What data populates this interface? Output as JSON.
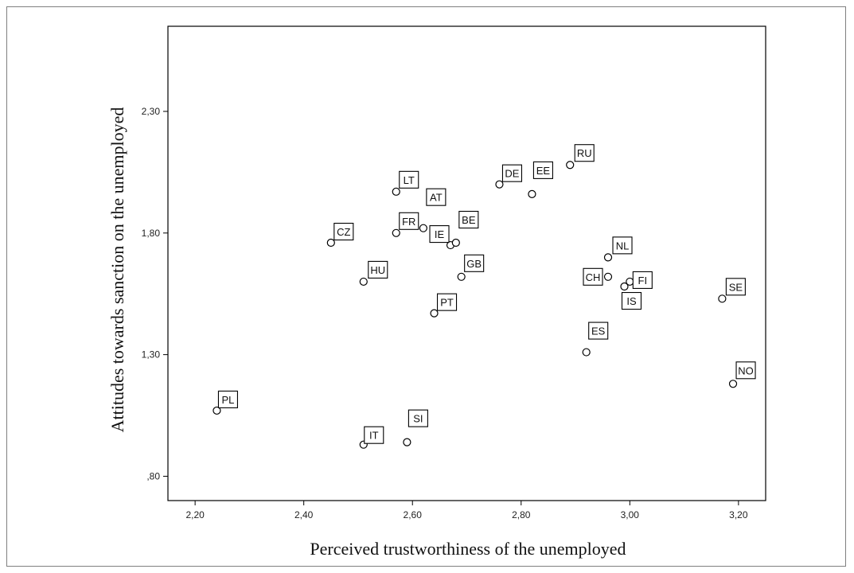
{
  "chart_data": {
    "type": "scatter",
    "title": "",
    "xlabel": "Perceived trustworthiness of the unemployed",
    "ylabel": "Attitudes towards sanction on the unemployed",
    "xlim": [
      2.15,
      3.25
    ],
    "ylim": [
      0.7,
      2.65
    ],
    "xticks": [
      2.2,
      2.4,
      2.6,
      2.8,
      3.0,
      3.2
    ],
    "xtick_labels": [
      "2,20",
      "2,40",
      "2,60",
      "2,80",
      "3,00",
      "3,20"
    ],
    "yticks": [
      0.8,
      1.3,
      1.8,
      2.3
    ],
    "ytick_labels": [
      ",80",
      "1,30",
      "1,80",
      "2,30"
    ],
    "grid": false,
    "legend": "none",
    "marker": "open-circle",
    "points": [
      {
        "label": "PL",
        "x": 2.24,
        "y": 1.07,
        "dx": 14,
        "dy": -14
      },
      {
        "label": "IT",
        "x": 2.51,
        "y": 0.93,
        "dx": 13,
        "dy": -12
      },
      {
        "label": "SI",
        "x": 2.59,
        "y": 0.94,
        "dx": 14,
        "dy": -30
      },
      {
        "label": "CZ",
        "x": 2.45,
        "y": 1.76,
        "dx": 16,
        "dy": -14
      },
      {
        "label": "HU",
        "x": 2.51,
        "y": 1.6,
        "dx": 18,
        "dy": -15
      },
      {
        "label": "LT",
        "x": 2.57,
        "y": 1.97,
        "dx": 16,
        "dy": -15
      },
      {
        "label": "FR",
        "x": 2.57,
        "y": 1.8,
        "dx": 16,
        "dy": -15
      },
      {
        "label": "AT",
        "x": 2.62,
        "y": 1.82,
        "dx": 16,
        "dy": -39
      },
      {
        "label": "IE",
        "x": 2.67,
        "y": 1.75,
        "dx": -14,
        "dy": -14
      },
      {
        "label": "BE",
        "x": 2.68,
        "y": 1.76,
        "dx": 16,
        "dy": -29
      },
      {
        "label": "GB",
        "x": 2.69,
        "y": 1.62,
        "dx": 16,
        "dy": -17
      },
      {
        "label": "PT",
        "x": 2.64,
        "y": 1.47,
        "dx": 16,
        "dy": -14
      },
      {
        "label": "DE",
        "x": 2.76,
        "y": 2.0,
        "dx": 16,
        "dy": -14
      },
      {
        "label": "EE",
        "x": 2.82,
        "y": 1.96,
        "dx": 14,
        "dy": -30
      },
      {
        "label": "RU",
        "x": 2.89,
        "y": 2.08,
        "dx": 18,
        "dy": -15
      },
      {
        "label": "NL",
        "x": 2.96,
        "y": 1.7,
        "dx": 18,
        "dy": -15
      },
      {
        "label": "CH",
        "x": 2.96,
        "y": 1.62,
        "dx": -19,
        "dy": 0
      },
      {
        "label": "FI",
        "x": 3.0,
        "y": 1.6,
        "dx": 16,
        "dy": -2
      },
      {
        "label": "IS",
        "x": 2.99,
        "y": 1.58,
        "dx": 9,
        "dy": 18
      },
      {
        "label": "ES",
        "x": 2.92,
        "y": 1.31,
        "dx": 15,
        "dy": -27
      },
      {
        "label": "SE",
        "x": 3.17,
        "y": 1.53,
        "dx": 17,
        "dy": -15
      },
      {
        "label": "NO",
        "x": 3.19,
        "y": 1.18,
        "dx": 16,
        "dy": -17
      }
    ]
  }
}
